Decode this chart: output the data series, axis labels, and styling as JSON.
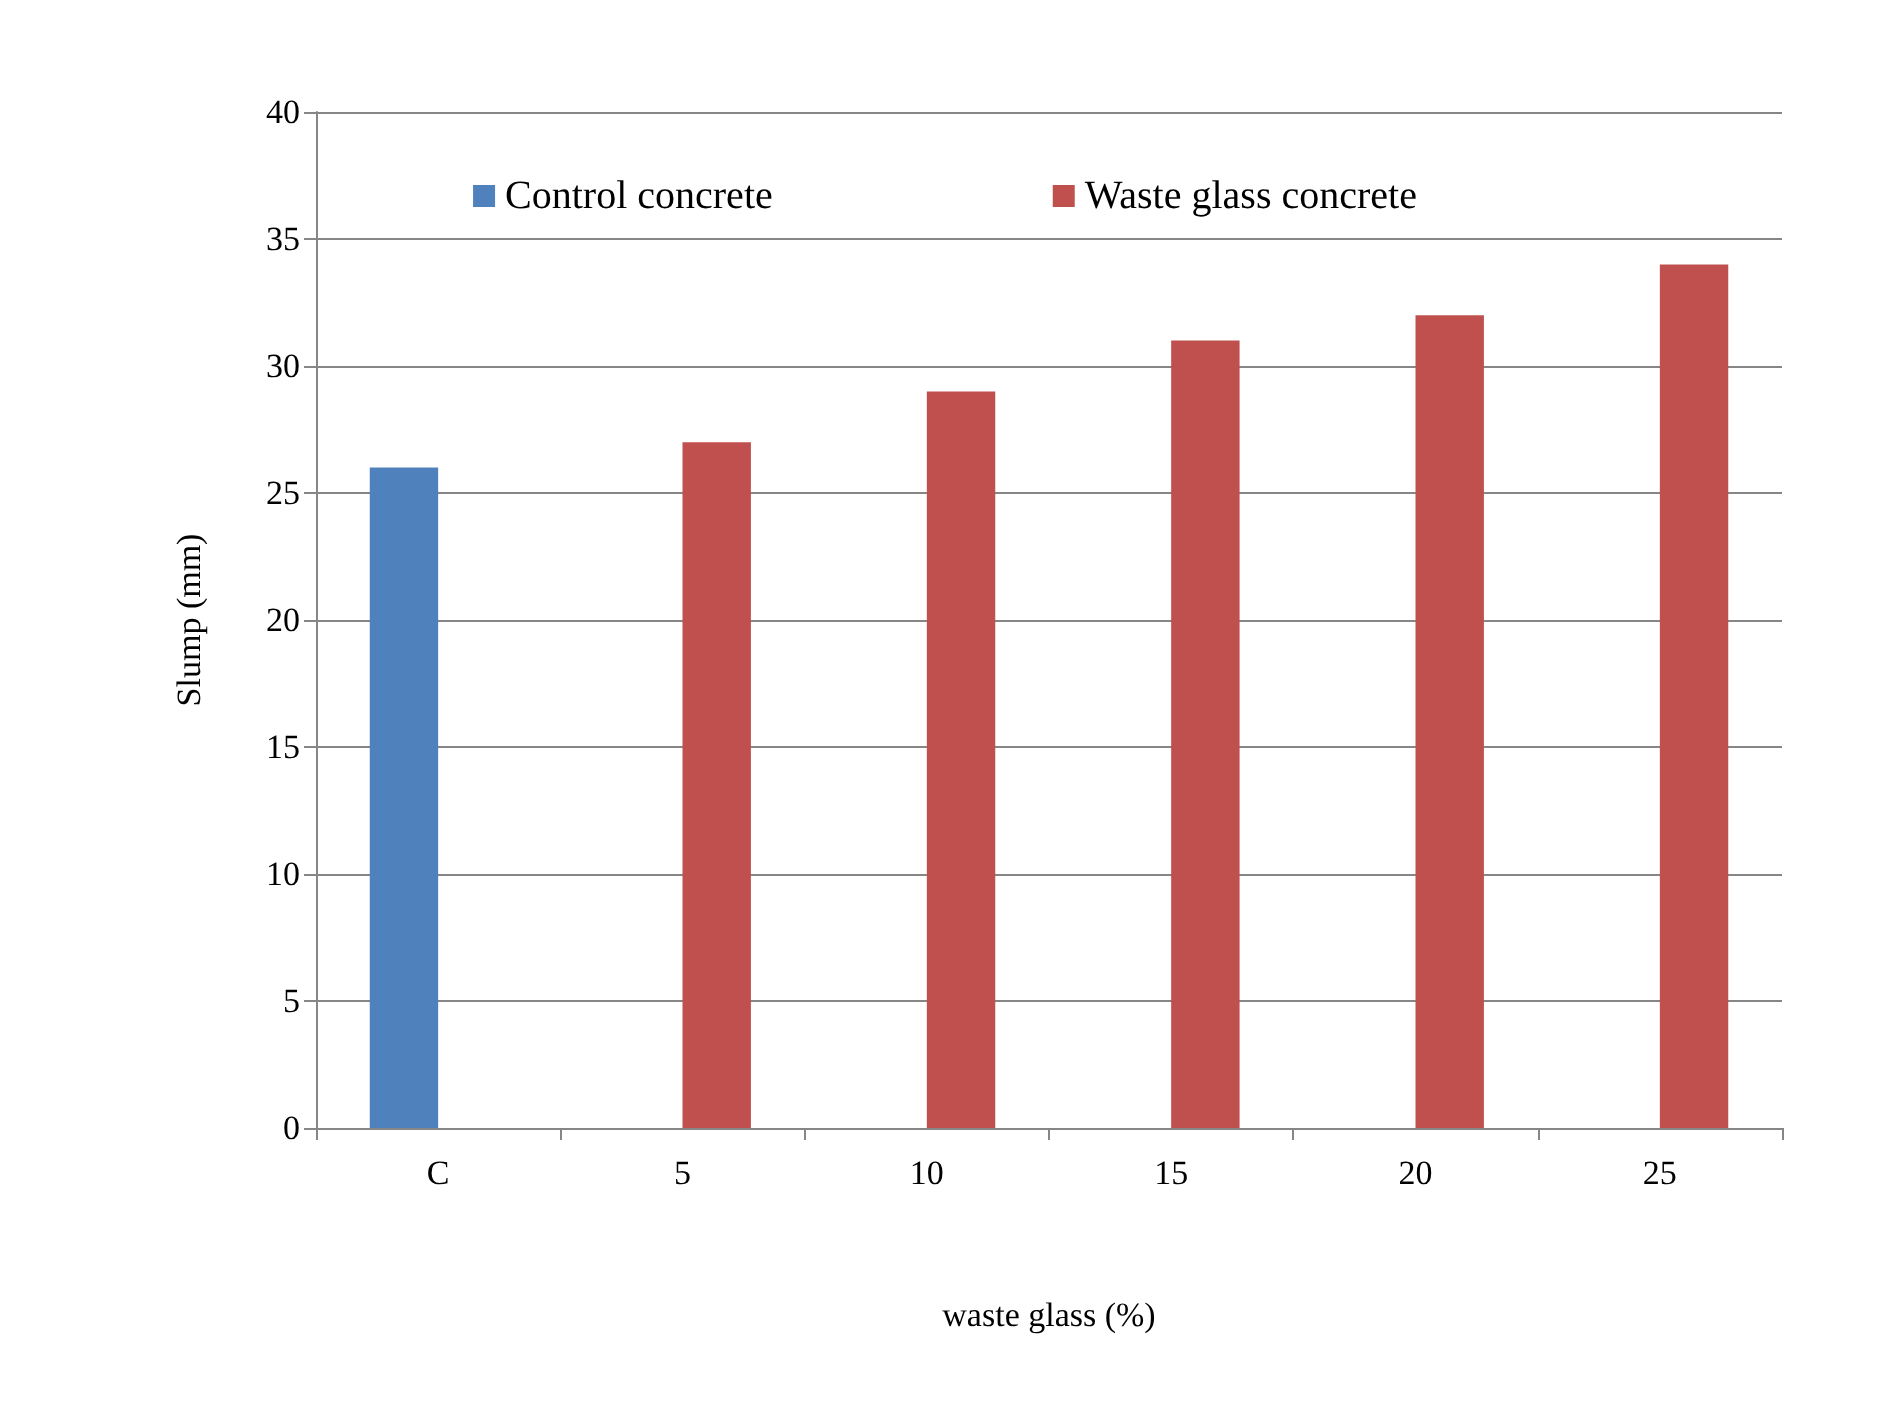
{
  "chart_data": {
    "type": "bar",
    "xlabel": "waste glass (%)",
    "ylabel": "Slump (mm)",
    "categories": [
      "C",
      "5",
      "10",
      "15",
      "20",
      "25"
    ],
    "series": [
      {
        "name": "Control concrete",
        "color": "#4f81bd",
        "values": [
          26,
          null,
          null,
          null,
          null,
          null
        ]
      },
      {
        "name": "Waste glass concrete",
        "color": "#c0504d",
        "values": [
          null,
          27,
          29,
          31,
          32,
          34
        ]
      }
    ],
    "ylim": [
      0,
      40
    ],
    "yticks": [
      0,
      5,
      10,
      15,
      20,
      25,
      30,
      35,
      40
    ],
    "grid": "y",
    "legend": "top"
  }
}
